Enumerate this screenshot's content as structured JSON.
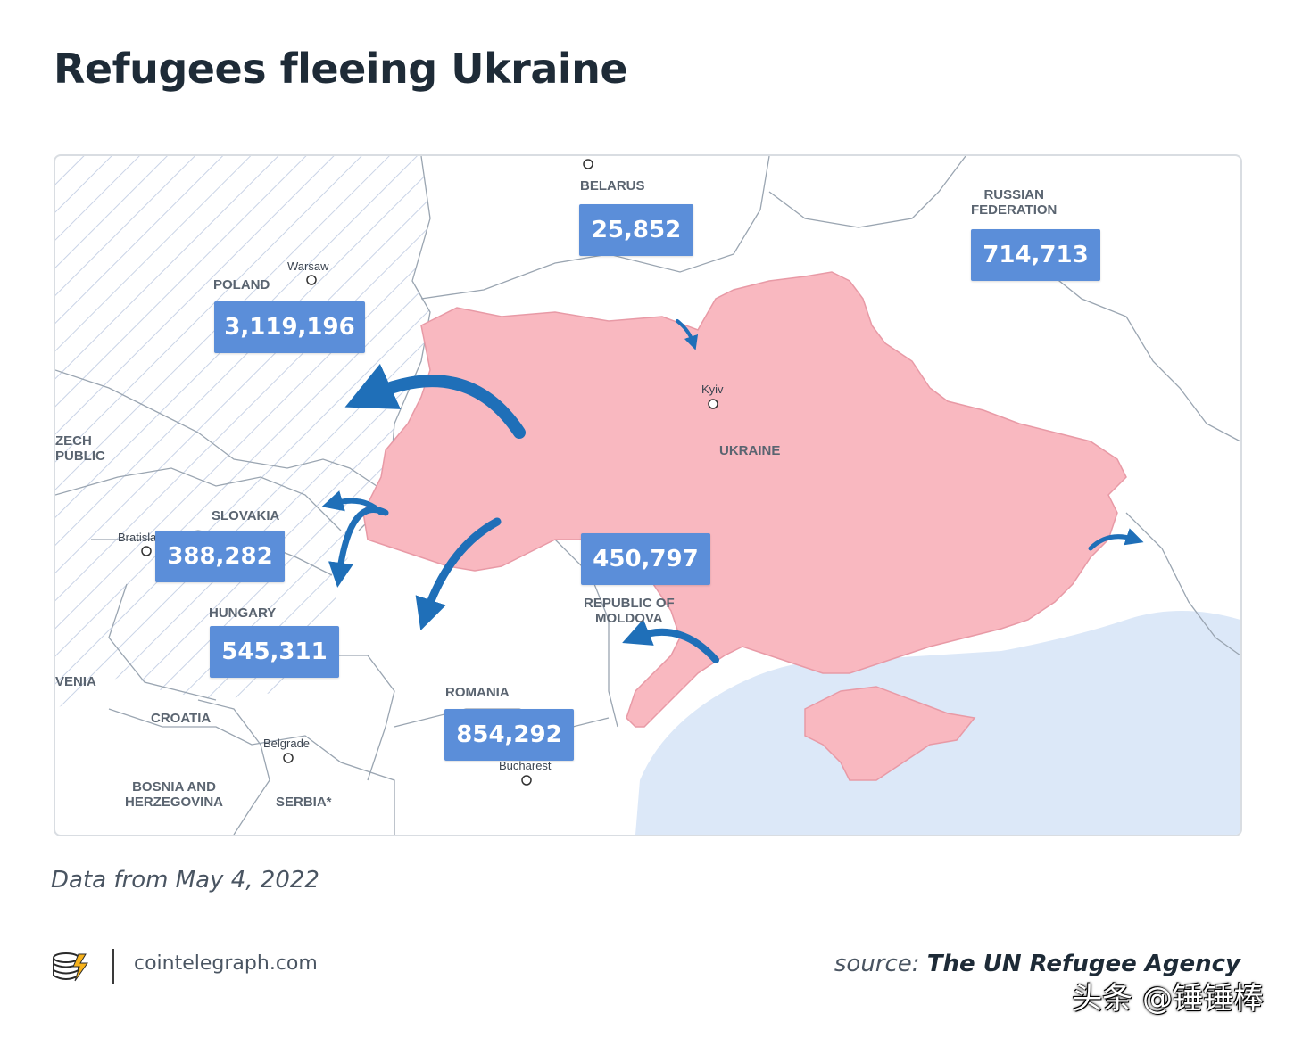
{
  "title": "Refugees fleeing Ukraine",
  "map": {
    "countries": {
      "belarus": "BELARUS",
      "russia_line1": "RUSSIAN",
      "russia_line2": "FEDERATION",
      "poland": "POLAND",
      "czech_line1": "ZECH",
      "czech_line2": "PUBLIC",
      "slovakia": "SLOVAKIA",
      "hungary": "HUNGARY",
      "slovenia": "VENIA",
      "croatia": "CROATIA",
      "bosnia_line1": "BOSNIA AND",
      "bosnia_line2": "HERZEGOVINA",
      "serbia": "SERBIA*",
      "romania": "ROMANIA",
      "moldova_line1": "REPUBLIC OF",
      "moldova_line2": "MOLDOVA",
      "ukraine": "UKRAINE"
    },
    "cities": {
      "warsaw": "Warsaw",
      "kyiv": "Kyiv",
      "bratislava": "Bratislava",
      "belgrade": "Belgrade",
      "bucharest": "Bucharest"
    },
    "refugee_counts": {
      "belarus": "25,852",
      "russia": "714,713",
      "poland": "3,119,196",
      "slovakia": "388,282",
      "hungary": "545,311",
      "moldova": "450,797",
      "romania": "854,292"
    },
    "colors": {
      "ukraine_fill": "#f9b8c0",
      "box_fill": "#5b8ed9",
      "arrow": "#1f6fb8",
      "sea": "#dce8f8",
      "hatch": "#c9d3e6"
    }
  },
  "footnote": "Data from May 4, 2022",
  "footer": {
    "site": "cointelegraph.com",
    "source_prefix": "source:",
    "source_name": "The UN Refugee Agency",
    "watermark": "头条 @锤锤棒"
  }
}
